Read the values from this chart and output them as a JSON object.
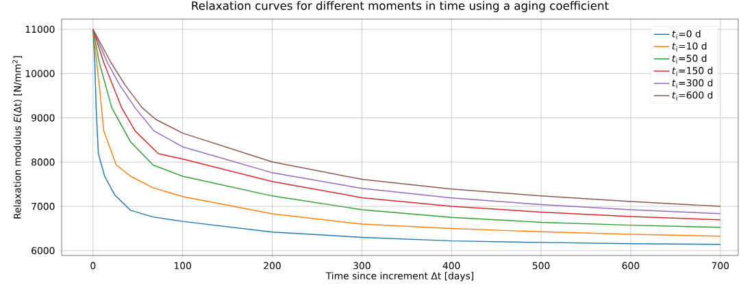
{
  "chart_data": {
    "type": "line",
    "title": "Relaxation curves for different moments in time using a aging coefficient",
    "xlabel": "Time since increment Δt [days]",
    "ylabel": "Relaxation modulus *E*(Δt) [N/mm$^{2}$]",
    "xlim": [
      -35,
      720
    ],
    "ylim": [
      5890,
      11230
    ],
    "xticks": [
      0,
      100,
      200,
      300,
      400,
      500,
      600,
      700
    ],
    "yticks": [
      6000,
      7000,
      8000,
      9000,
      10000,
      11000
    ],
    "grid": true,
    "legend": "top right",
    "line_style": "solid",
    "marker": "none",
    "series": [
      {
        "name": "*t*$_{i}$=0 d",
        "color": "#1f77b4",
        "x": [
          0,
          2,
          3.5,
          6,
          13,
          24,
          42,
          67,
          100,
          200,
          300,
          400,
          500,
          600,
          700
        ],
        "values": [
          11000,
          10250,
          9225,
          8190,
          7680,
          7265,
          6910,
          6760,
          6660,
          6420,
          6300,
          6220,
          6185,
          6155,
          6140
        ]
      },
      {
        "name": "*t*$_{i}$=10 d",
        "color": "#ff7f0e",
        "x": [
          0,
          7,
          12,
          26,
          42,
          67,
          100,
          200,
          300,
          400,
          500,
          600,
          700
        ],
        "values": [
          11000,
          9735,
          8705,
          7935,
          7680,
          7420,
          7220,
          6830,
          6600,
          6500,
          6425,
          6370,
          6325
        ]
      },
      {
        "name": "*t*$_{i}$=50 d",
        "color": "#2ca02c",
        "x": [
          0,
          7,
          21,
          42,
          67,
          100,
          200,
          300,
          400,
          500,
          600,
          700
        ],
        "values": [
          11000,
          10250,
          9225,
          8455,
          7935,
          7680,
          7235,
          6925,
          6750,
          6640,
          6575,
          6525
        ]
      },
      {
        "name": "*t*$_{i}$=150 d",
        "color": "#d62728",
        "x": [
          0,
          12,
          32,
          47,
          73,
          100,
          200,
          300,
          400,
          500,
          600,
          700
        ],
        "values": [
          11000,
          10250,
          9225,
          8705,
          8190,
          8070,
          7560,
          7195,
          7000,
          6870,
          6770,
          6695
        ]
      },
      {
        "name": "*t*$_{i}$=300 d",
        "color": "#9467bd",
        "x": [
          0,
          16,
          30,
          47,
          68,
          100,
          200,
          300,
          400,
          500,
          600,
          700
        ],
        "values": [
          11000,
          10250,
          9735,
          9225,
          8705,
          8345,
          7760,
          7405,
          7190,
          7040,
          6925,
          6835
        ]
      },
      {
        "name": "*t*$_{i}$=600 d",
        "color": "#8c564b",
        "x": [
          0,
          20,
          36,
          55,
          70,
          100,
          200,
          300,
          400,
          500,
          600,
          700
        ],
        "values": [
          11000,
          10250,
          9735,
          9225,
          8965,
          8655,
          8005,
          7610,
          7390,
          7235,
          7110,
          7000
        ]
      }
    ]
  }
}
